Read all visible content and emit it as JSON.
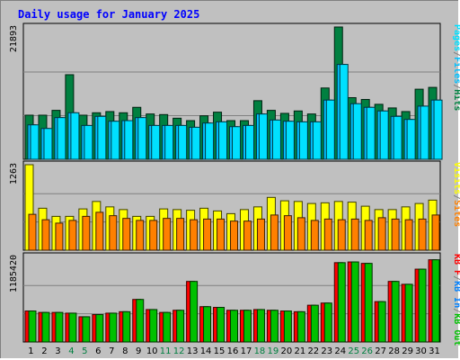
{
  "chart_data": {
    "type": "bar",
    "title": "Daily usage for January 2025",
    "colors": {
      "background": "#c0c0c0",
      "hits": "#008040",
      "files": "#00c0ff",
      "pages": "#00e0ff",
      "visits": "#ffff00",
      "sites": "#ff8000",
      "kbf": "#ff0000",
      "kbin": "#0080ff",
      "kbout": "#00c000",
      "weekend_label": "#008040",
      "weekday_label": "#000000"
    },
    "categories": [
      "1",
      "2",
      "3",
      "4",
      "5",
      "6",
      "7",
      "8",
      "9",
      "10",
      "11",
      "12",
      "13",
      "14",
      "15",
      "16",
      "17",
      "18",
      "19",
      "20",
      "21",
      "22",
      "23",
      "24",
      "25",
      "26",
      "27",
      "28",
      "29",
      "30",
      "31"
    ],
    "weekend_days": [
      "4",
      "5",
      "11",
      "12",
      "18",
      "19",
      "25",
      "26"
    ],
    "panels": [
      {
        "id": "hits",
        "ytick_label": "21893",
        "ylim": [
          0,
          21893
        ],
        "legend": [
          {
            "text": "Pages",
            "color": "#00e0ff"
          },
          {
            "text": "/",
            "color": "#808080"
          },
          {
            "text": "Files",
            "color": "#00c0ff"
          },
          {
            "text": "/",
            "color": "#808080"
          },
          {
            "text": "Hits",
            "color": "#008040"
          }
        ],
        "series": [
          {
            "name": "Hits",
            "values": [
              7300,
              7300,
              8100,
              14000,
              7300,
              7700,
              7900,
              7700,
              8600,
              7500,
              7400,
              6800,
              6400,
              7200,
              7800,
              6400,
              6400,
              9700,
              8100,
              7600,
              8000,
              7500,
              11800,
              21893,
              10200,
              9900,
              9100,
              8500,
              7900,
              11600,
              11900
            ]
          },
          {
            "name": "Files",
            "values": [
              5700,
              5100,
              6900,
              7700,
              5600,
              7100,
              6300,
              6400,
              6900,
              5600,
              5600,
              5600,
              5300,
              6000,
              6200,
              5400,
              5600,
              7500,
              6500,
              6300,
              6200,
              6200,
              9800,
              15700,
              9200,
              8600,
              8000,
              7100,
              6600,
              8800,
              9800
            ]
          },
          {
            "name": "Pages",
            "values": [
              5700,
              5100,
              6900,
              7700,
              5600,
              7100,
              6300,
              6400,
              6900,
              5600,
              5600,
              5600,
              5300,
              6000,
              6200,
              5400,
              5600,
              7500,
              6500,
              6300,
              6200,
              6200,
              9800,
              15700,
              9200,
              8600,
              8000,
              7100,
              6600,
              8800,
              9800
            ]
          }
        ]
      },
      {
        "id": "visits",
        "ytick_label": "1263",
        "ylim": [
          0,
          1263
        ],
        "legend": [
          {
            "text": "Visits",
            "color": "#ffff00"
          },
          {
            "text": "/",
            "color": "#808080"
          },
          {
            "text": "Sites",
            "color": "#ff8000"
          }
        ],
        "series": [
          {
            "name": "Visits",
            "values": [
              1263,
              620,
              500,
              500,
              610,
              720,
              640,
              600,
              500,
              500,
              610,
              600,
              590,
              620,
              580,
              540,
              600,
              640,
              780,
              730,
              720,
              690,
              700,
              720,
              710,
              650,
              600,
              600,
              640,
              690,
              740
            ]
          },
          {
            "name": "Sites",
            "values": [
              530,
              450,
              400,
              440,
              500,
              560,
              510,
              470,
              440,
              440,
              470,
              470,
              450,
              460,
              460,
              430,
              430,
              460,
              520,
              510,
              480,
              440,
              460,
              450,
              460,
              440,
              480,
              460,
              450,
              460,
              520
            ]
          }
        ]
      },
      {
        "id": "kbf",
        "ytick_label": "1185420",
        "ylim": [
          0,
          1185420
        ],
        "legend": [
          {
            "text": "KB F",
            "color": "#ff0000"
          },
          {
            "text": "/",
            "color": "#808080"
          },
          {
            "text": "KB In",
            "color": "#0080ff"
          },
          {
            "text": "/",
            "color": "#808080"
          },
          {
            "text": "KB Out",
            "color": "#00c000"
          }
        ],
        "series": [
          {
            "name": "KB F",
            "values": [
              430000,
              410000,
              410000,
              400000,
              350000,
              380000,
              400000,
              420000,
              590000,
              450000,
              410000,
              440000,
              840000,
              490000,
              480000,
              440000,
              440000,
              450000,
              440000,
              430000,
              420000,
              510000,
              540000,
              1100000,
              1110000,
              1090000,
              560000,
              840000,
              800000,
              1010000,
              1140000
            ]
          },
          {
            "name": "KB Out",
            "values": [
              430000,
              410000,
              410000,
              400000,
              350000,
              380000,
              400000,
              420000,
              590000,
              450000,
              410000,
              440000,
              840000,
              490000,
              480000,
              440000,
              440000,
              450000,
              440000,
              430000,
              420000,
              510000,
              540000,
              1100000,
              1110000,
              1090000,
              560000,
              840000,
              800000,
              1010000,
              1140000
            ]
          }
        ]
      }
    ]
  }
}
